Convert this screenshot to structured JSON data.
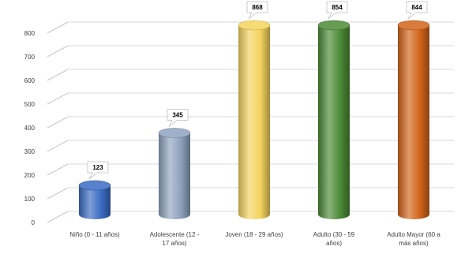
{
  "chart_data": {
    "type": "bar",
    "style": "3d-cylinder",
    "categories": [
      [
        "Niño (0 - 11 años)"
      ],
      [
        "Adolescente (12 -",
        "17 años)"
      ],
      [
        "Joven (18 - 29 años)"
      ],
      [
        "Adulto (30 - 59",
        "años)"
      ],
      [
        "Adulto Mayor (60 a",
        "más años)"
      ]
    ],
    "values": [
      123,
      345,
      868,
      854,
      844
    ],
    "data_labels": [
      "123",
      "345",
      "868",
      "854",
      "844"
    ],
    "colors": [
      "#3a6cc4",
      "#8ea3bf",
      "#f4d35e",
      "#4b8a35",
      "#d2641a"
    ],
    "ylim": [
      0,
      800
    ],
    "yticks": [
      0,
      100,
      200,
      300,
      400,
      500,
      600,
      700,
      800
    ],
    "grid": true,
    "legend": "none"
  }
}
